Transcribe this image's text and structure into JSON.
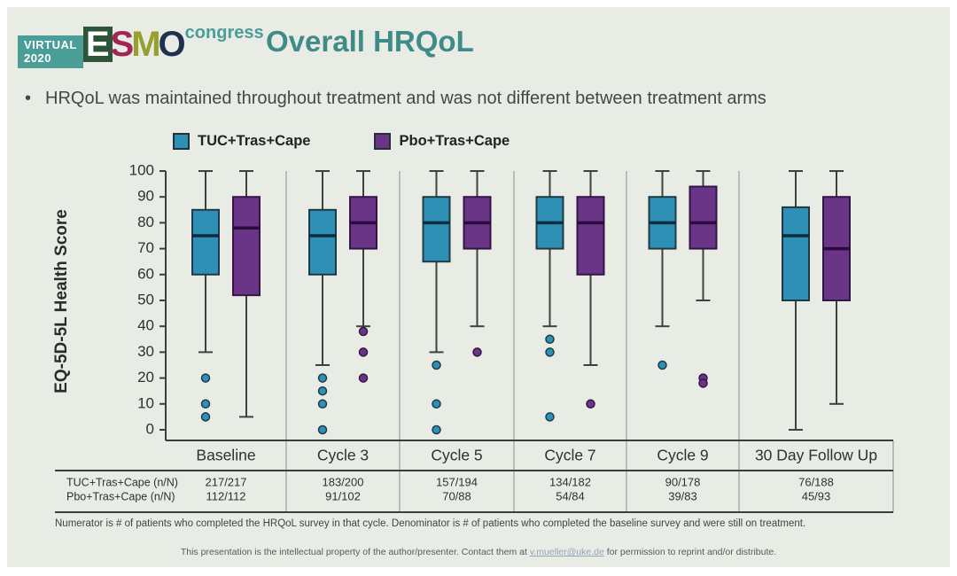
{
  "header": {
    "logo": {
      "virtual_line1": "VIRTUAL",
      "virtual_line2": "2020",
      "esmo_e": "E",
      "esmo_s": "S",
      "esmo_m": "M",
      "esmo_o": "O",
      "congress": "congress",
      "teal": "#4b9d98"
    },
    "title": "Overall HRQoL"
  },
  "bullet": {
    "marker": "•",
    "text": "HRQoL was maintained throughout treatment and was not different between treatment arms"
  },
  "legend": [
    {
      "label": "TUC+Tras+Cape",
      "color": "#2e90b4"
    },
    {
      "label": "Pbo+Tras+Cape",
      "color": "#6a3487"
    }
  ],
  "chart_data": {
    "type": "boxplot",
    "title": "",
    "ylabel": "EQ-5D-5L Health Score",
    "xlabel": "",
    "ylim": [
      0,
      100
    ],
    "yticks": [
      0,
      10,
      20,
      30,
      40,
      50,
      60,
      70,
      80,
      90,
      100
    ],
    "grid": "vertical-dividers-between-groups",
    "legend_position": "top",
    "categories": [
      "Baseline",
      "Cycle 3",
      "Cycle 5",
      "Cycle 7",
      "Cycle 9",
      "30 Day Follow Up"
    ],
    "series": [
      {
        "name": "TUC+Tras+Cape",
        "color": "#2e90b4",
        "stroke": "#1f3a46",
        "median_color": "#0c2a40",
        "boxes": [
          {
            "whisker_low": 30,
            "q1": 60,
            "median": 75,
            "q3": 85,
            "whisker_high": 100,
            "outliers": [
              20,
              10,
              5
            ]
          },
          {
            "whisker_low": 25,
            "q1": 60,
            "median": 75,
            "q3": 85,
            "whisker_high": 100,
            "outliers": [
              20,
              15,
              10,
              0
            ]
          },
          {
            "whisker_low": 30,
            "q1": 65,
            "median": 80,
            "q3": 90,
            "whisker_high": 100,
            "outliers": [
              25,
              10,
              0
            ]
          },
          {
            "whisker_low": 40,
            "q1": 70,
            "median": 80,
            "q3": 90,
            "whisker_high": 100,
            "outliers": [
              35,
              30,
              5
            ]
          },
          {
            "whisker_low": 40,
            "q1": 70,
            "median": 80,
            "q3": 90,
            "whisker_high": 100,
            "outliers": [
              25
            ]
          },
          {
            "whisker_low": 0,
            "q1": 50,
            "median": 75,
            "q3": 86,
            "whisker_high": 100,
            "outliers": []
          }
        ]
      },
      {
        "name": "Pbo+Tras+Cape",
        "color": "#6a3487",
        "stroke": "#331646",
        "median_color": "#2a0c3c",
        "boxes": [
          {
            "whisker_low": 5,
            "q1": 52,
            "median": 78,
            "q3": 90,
            "whisker_high": 100,
            "outliers": []
          },
          {
            "whisker_low": 40,
            "q1": 70,
            "median": 80,
            "q3": 90,
            "whisker_high": 100,
            "outliers": [
              38,
              30,
              20
            ]
          },
          {
            "whisker_low": 40,
            "q1": 70,
            "median": 80,
            "q3": 90,
            "whisker_high": 100,
            "outliers": [
              30
            ]
          },
          {
            "whisker_low": 25,
            "q1": 60,
            "median": 80,
            "q3": 90,
            "whisker_high": 100,
            "outliers": [
              10
            ]
          },
          {
            "whisker_low": 50,
            "q1": 70,
            "median": 80,
            "q3": 94,
            "whisker_high": 100,
            "outliers": [
              20,
              18
            ]
          },
          {
            "whisker_low": 10,
            "q1": 50,
            "median": 70,
            "q3": 90,
            "whisker_high": 100,
            "outliers": []
          }
        ]
      }
    ]
  },
  "table": {
    "rows": [
      {
        "label": "TUC+Tras+Cape (n/N)",
        "values": [
          "217/217",
          "183/200",
          "157/194",
          "134/182",
          "90/178",
          "76/188"
        ]
      },
      {
        "label": "Pbo+Tras+Cape (n/N)",
        "values": [
          "112/112",
          "91/102",
          "70/88",
          "54/84",
          "39/83",
          "45/93"
        ]
      }
    ]
  },
  "footnote": "Numerator is # of patients who completed the HRQoL survey in that cycle. Denominator is # of patients who completed the baseline survey and were still on treatment.",
  "disclaimer": {
    "prefix": "This presentation is the intellectual property of the author/presenter. Contact them at ",
    "email": "v.mueller@uke.de",
    "suffix": " for permission to reprint and/or distribute."
  }
}
